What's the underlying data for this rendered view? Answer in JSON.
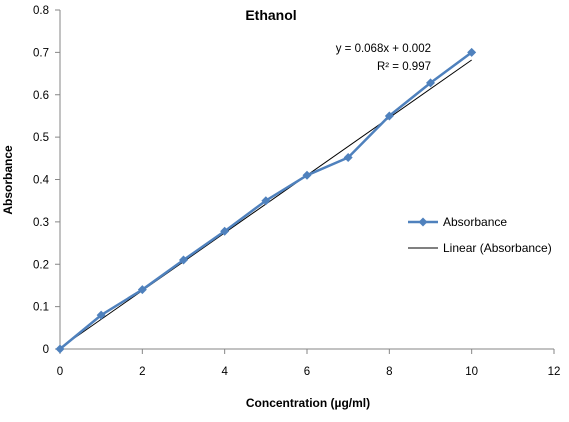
{
  "chart_data": {
    "type": "line",
    "title": "Ethanol",
    "xlabel": "Concentration (µg/ml)",
    "ylabel": "Absorbance",
    "xlim": [
      0,
      12
    ],
    "ylim": [
      0,
      0.8
    ],
    "x_ticks": [
      0,
      2,
      4,
      6,
      8,
      10,
      12
    ],
    "y_ticks": [
      0,
      0.1,
      0.2,
      0.3,
      0.4,
      0.5,
      0.6,
      0.7,
      0.8
    ],
    "x_tick_labels": [
      "0",
      "2",
      "4",
      "6",
      "8",
      "10",
      "12"
    ],
    "y_tick_labels": [
      "0",
      "0.1",
      "0.2",
      "0.3",
      "0.4",
      "0.5",
      "0.6",
      "0.7",
      "0.8"
    ],
    "grid": false,
    "legend_position": "right",
    "series": [
      {
        "name": "Absorbance",
        "marker": "diamond",
        "color": "#4F81BD",
        "x": [
          0,
          1,
          2,
          3,
          4,
          5,
          6,
          7,
          8,
          9,
          10
        ],
        "y": [
          0,
          0.08,
          0.14,
          0.21,
          0.278,
          0.35,
          0.41,
          0.452,
          0.55,
          0.628,
          0.7
        ]
      },
      {
        "name": "Linear (Absorbance)",
        "kind": "trendline",
        "color": "#000000",
        "slope": 0.068,
        "intercept": 0.002,
        "x_range": [
          0,
          10
        ]
      }
    ],
    "annotations": {
      "equation": "y = 0.068x + 0.002",
      "r_squared": "R² = 0.997"
    }
  }
}
